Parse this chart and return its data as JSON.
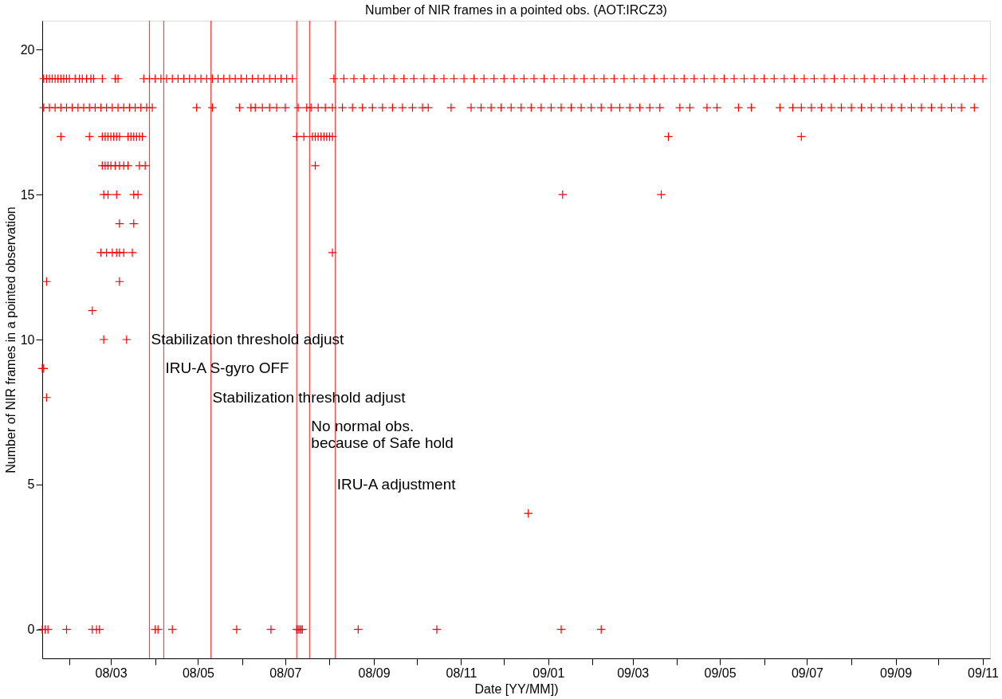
{
  "chart_data": {
    "type": "scatter",
    "title": "Number of NIR frames in a pointed obs. (AOT:IRCZ3)",
    "xlabel": "Date [YY/MM])",
    "ylabel": "Number of NIR frames in a pointed observation",
    "xlim": [
      "2008-01-13",
      "2009-11-06"
    ],
    "xticks": [
      {
        "value": "2008-02-01",
        "label": null
      },
      {
        "value": "2008-03-01",
        "label": "08/03"
      },
      {
        "value": "2008-04-01",
        "label": null
      },
      {
        "value": "2008-05-01",
        "label": "08/05"
      },
      {
        "value": "2008-06-01",
        "label": null
      },
      {
        "value": "2008-07-01",
        "label": "08/07"
      },
      {
        "value": "2008-08-01",
        "label": null
      },
      {
        "value": "2008-09-01",
        "label": "08/09"
      },
      {
        "value": "2008-10-01",
        "label": null
      },
      {
        "value": "2008-11-01",
        "label": "08/11"
      },
      {
        "value": "2008-12-01",
        "label": null
      },
      {
        "value": "2009-01-01",
        "label": "09/01"
      },
      {
        "value": "2009-02-01",
        "label": null
      },
      {
        "value": "2009-03-01",
        "label": "09/03"
      },
      {
        "value": "2009-04-01",
        "label": null
      },
      {
        "value": "2009-05-01",
        "label": "09/05"
      },
      {
        "value": "2009-06-01",
        "label": null
      },
      {
        "value": "2009-07-01",
        "label": "09/07"
      },
      {
        "value": "2009-08-01",
        "label": null
      },
      {
        "value": "2009-09-01",
        "label": "09/09"
      },
      {
        "value": "2009-10-01",
        "label": null
      },
      {
        "value": "2009-11-01",
        "label": "09/11"
      }
    ],
    "ylim": [
      -1,
      21
    ],
    "yticks": [
      0,
      5,
      10,
      15,
      20
    ],
    "grid": false,
    "legend": false,
    "marker": "cross",
    "ref_lines": [
      {
        "axis": "x",
        "value": "2008-03-28",
        "color": "#ff4040"
      },
      {
        "axis": "x",
        "value": "2008-04-07",
        "color": "#ff4040"
      },
      {
        "axis": "x",
        "value": "2008-05-10",
        "color": "#ff4040"
      },
      {
        "axis": "x",
        "value": "2008-07-09",
        "color": "#ff4040"
      },
      {
        "axis": "x",
        "value": "2008-07-18",
        "color": "#ff4040"
      },
      {
        "axis": "x",
        "value": "2008-08-05",
        "color": "#ff4040"
      }
    ],
    "annotations": [
      {
        "text": "Stabilization threshold adjust",
        "x": "2008-03-28",
        "y": 10
      },
      {
        "text": "IRU-A S-gyro OFF",
        "x": "2008-04-07",
        "y": 9
      },
      {
        "text": "Stabilization threshold adjust",
        "x": "2008-05-10",
        "y": 8
      },
      {
        "text": "No normal obs.\nbecause of Safe hold",
        "x": "2008-07-18",
        "y": 7
      },
      {
        "text": "IRU-A adjustment",
        "x": "2008-08-05",
        "y": 5
      }
    ],
    "series": [
      {
        "color": "#ff0000",
        "x": [
          "2008-01-14",
          "2008-01-16",
          "2008-01-18",
          "2008-01-20",
          "2008-01-22",
          "2008-01-24",
          "2008-01-26",
          "2008-01-28",
          "2008-01-30",
          "2008-02-01",
          "2008-02-05",
          "2008-02-08",
          "2008-02-10",
          "2008-02-13",
          "2008-02-16",
          "2008-02-18",
          "2008-02-24",
          "2008-03-04",
          "2008-03-06",
          "2008-03-24",
          "2008-03-28",
          "2008-04-01",
          "2008-04-05",
          "2008-04-09",
          "2008-04-13",
          "2008-04-17",
          "2008-04-21",
          "2008-04-25",
          "2008-04-29",
          "2008-05-03",
          "2008-05-07",
          "2008-05-11",
          "2008-05-15",
          "2008-05-19",
          "2008-05-23",
          "2008-05-27",
          "2008-05-31",
          "2008-06-04",
          "2008-06-08",
          "2008-06-12",
          "2008-06-16",
          "2008-06-20",
          "2008-06-24",
          "2008-06-28",
          "2008-07-02",
          "2008-07-06",
          "2008-08-04",
          "2008-08-11",
          "2008-08-18",
          "2008-08-25",
          "2008-09-01",
          "2008-09-08",
          "2008-09-15",
          "2008-09-22",
          "2008-09-29",
          "2008-10-06",
          "2008-10-13",
          "2008-10-20",
          "2008-10-27",
          "2008-11-03",
          "2008-11-10",
          "2008-11-17",
          "2008-11-24",
          "2008-12-01",
          "2008-12-08",
          "2008-12-15",
          "2008-12-22",
          "2008-12-29",
          "2009-01-05",
          "2009-01-12",
          "2009-01-19",
          "2009-01-26",
          "2009-02-02",
          "2009-02-09",
          "2009-02-16",
          "2009-02-23",
          "2009-03-02",
          "2009-03-09",
          "2009-03-16",
          "2009-03-23",
          "2009-03-30",
          "2009-04-06",
          "2009-04-13",
          "2009-04-20",
          "2009-04-27",
          "2009-05-04",
          "2009-05-11",
          "2009-05-18",
          "2009-05-25",
          "2009-06-01",
          "2009-06-08",
          "2009-06-15",
          "2009-06-22",
          "2009-06-29",
          "2009-07-06",
          "2009-07-13",
          "2009-07-20",
          "2009-07-27",
          "2009-08-03",
          "2009-08-10",
          "2009-08-17",
          "2009-08-24",
          "2009-08-31",
          "2009-09-07",
          "2009-09-14",
          "2009-09-21",
          "2009-09-28",
          "2009-10-05",
          "2009-10-12",
          "2009-10-19",
          "2009-10-26",
          "2009-11-01",
          "2008-01-14",
          "2008-01-18",
          "2008-01-22",
          "2008-01-26",
          "2008-01-30",
          "2008-02-03",
          "2008-02-07",
          "2008-02-11",
          "2008-02-15",
          "2008-02-19",
          "2008-02-23",
          "2008-02-27",
          "2008-03-02",
          "2008-03-06",
          "2008-03-10",
          "2008-03-14",
          "2008-03-18",
          "2008-03-22",
          "2008-03-26",
          "2008-03-30",
          "2008-04-30",
          "2008-05-11",
          "2008-05-30",
          "2008-06-07",
          "2008-06-10",
          "2008-06-15",
          "2008-06-20",
          "2008-06-25",
          "2008-07-01",
          "2008-07-10",
          "2008-07-16",
          "2008-07-19",
          "2008-07-24",
          "2008-07-29",
          "2008-08-03",
          "2008-08-10",
          "2008-08-17",
          "2008-08-24",
          "2008-08-31",
          "2008-09-07",
          "2008-09-14",
          "2008-09-21",
          "2008-09-28",
          "2008-10-05",
          "2008-10-09",
          "2008-10-25",
          "2008-11-08",
          "2008-11-15",
          "2008-11-22",
          "2008-11-29",
          "2008-12-06",
          "2008-12-13",
          "2008-12-20",
          "2008-12-27",
          "2009-01-03",
          "2009-01-10",
          "2009-01-17",
          "2009-01-24",
          "2009-01-31",
          "2009-02-07",
          "2009-02-14",
          "2009-02-20",
          "2009-02-27",
          "2009-03-06",
          "2009-03-13",
          "2009-03-20",
          "2009-04-03",
          "2009-04-10",
          "2009-04-22",
          "2009-04-29",
          "2009-05-14",
          "2009-05-23",
          "2009-06-12",
          "2009-06-21",
          "2009-06-27",
          "2009-07-04",
          "2009-07-11",
          "2009-07-18",
          "2009-07-25",
          "2009-08-01",
          "2009-08-08",
          "2009-08-15",
          "2009-08-22",
          "2009-08-29",
          "2009-09-05",
          "2009-09-12",
          "2009-09-19",
          "2009-09-26",
          "2009-10-03",
          "2009-10-10",
          "2009-10-17",
          "2009-10-26",
          "2008-01-26",
          "2008-02-15",
          "2008-02-24",
          "2008-02-26",
          "2008-02-28",
          "2008-03-01",
          "2008-03-03",
          "2008-03-05",
          "2008-03-07",
          "2008-03-13",
          "2008-03-15",
          "2008-03-17",
          "2008-03-19",
          "2008-03-21",
          "2008-03-23",
          "2008-07-09",
          "2008-07-14",
          "2008-07-20",
          "2008-07-22",
          "2008-07-24",
          "2008-07-26",
          "2008-07-28",
          "2008-07-30",
          "2008-08-01",
          "2008-08-03",
          "2009-03-26",
          "2009-06-27",
          "2008-02-24",
          "2008-02-26",
          "2008-02-28",
          "2008-03-01",
          "2008-03-04",
          "2008-03-07",
          "2008-03-10",
          "2008-03-13",
          "2008-03-21",
          "2008-03-25",
          "2008-07-22",
          "2008-02-25",
          "2008-02-28",
          "2008-03-05",
          "2008-03-17",
          "2008-03-20",
          "2009-01-11",
          "2009-03-21",
          "2008-03-07",
          "2008-03-17",
          "2008-02-23",
          "2008-02-27",
          "2008-03-02",
          "2008-03-05",
          "2008-03-07",
          "2008-03-10",
          "2008-03-16",
          "2008-08-03",
          "2008-01-16",
          "2008-03-07",
          "2008-02-17",
          "2008-02-25",
          "2008-03-12",
          "2008-01-13",
          "2008-01-14",
          "2008-01-16",
          "2008-12-18",
          "2008-01-13",
          "2008-01-15",
          "2008-01-17",
          "2008-01-30",
          "2008-02-17",
          "2008-02-20",
          "2008-02-22",
          "2008-04-01",
          "2008-04-03",
          "2008-04-13",
          "2008-05-28",
          "2008-06-21",
          "2008-07-09",
          "2008-07-10",
          "2008-07-11",
          "2008-07-12",
          "2008-07-13",
          "2008-08-21",
          "2008-10-15",
          "2009-01-10",
          "2009-02-07"
        ],
        "values": [
          19,
          19,
          19,
          19,
          19,
          19,
          19,
          19,
          19,
          19,
          19,
          19,
          19,
          19,
          19,
          19,
          19,
          19,
          19,
          19,
          19,
          19,
          19,
          19,
          19,
          19,
          19,
          19,
          19,
          19,
          19,
          19,
          19,
          19,
          19,
          19,
          19,
          19,
          19,
          19,
          19,
          19,
          19,
          19,
          19,
          19,
          19,
          19,
          19,
          19,
          19,
          19,
          19,
          19,
          19,
          19,
          19,
          19,
          19,
          19,
          19,
          19,
          19,
          19,
          19,
          19,
          19,
          19,
          19,
          19,
          19,
          19,
          19,
          19,
          19,
          19,
          19,
          19,
          19,
          19,
          19,
          19,
          19,
          19,
          19,
          19,
          19,
          19,
          19,
          19,
          19,
          19,
          19,
          19,
          19,
          19,
          19,
          19,
          19,
          19,
          19,
          19,
          19,
          19,
          19,
          19,
          19,
          19,
          19,
          19,
          19,
          19,
          18,
          18,
          18,
          18,
          18,
          18,
          18,
          18,
          18,
          18,
          18,
          18,
          18,
          18,
          18,
          18,
          18,
          18,
          18,
          18,
          18,
          18,
          18,
          18,
          18,
          18,
          18,
          18,
          18,
          18,
          18,
          18,
          18,
          18,
          18,
          18,
          18,
          18,
          18,
          18,
          18,
          18,
          18,
          18,
          18,
          18,
          18,
          18,
          18,
          18,
          18,
          18,
          18,
          18,
          18,
          18,
          18,
          18,
          18,
          18,
          18,
          18,
          18,
          18,
          18,
          18,
          18,
          18,
          18,
          18,
          18,
          18,
          18,
          18,
          18,
          18,
          18,
          18,
          18,
          18,
          18,
          18,
          18,
          18,
          18,
          18,
          18,
          18,
          18,
          18,
          18,
          18,
          17,
          17,
          17,
          17,
          17,
          17,
          17,
          17,
          17,
          17,
          17,
          17,
          17,
          17,
          17,
          17,
          17,
          17,
          17,
          17,
          17,
          17,
          17,
          17,
          17,
          17,
          17,
          16,
          16,
          16,
          16,
          16,
          16,
          16,
          16,
          16,
          16,
          16,
          15,
          15,
          15,
          15,
          15,
          15,
          15,
          14,
          14,
          13,
          13,
          13,
          13,
          13,
          13,
          13,
          13,
          12,
          12,
          11,
          10,
          10,
          9,
          9,
          8,
          4,
          0,
          0,
          0,
          0,
          0,
          0,
          0,
          0,
          0,
          0,
          0,
          0,
          0,
          0,
          0,
          0,
          0,
          0,
          0,
          0,
          0
        ]
      }
    ]
  }
}
